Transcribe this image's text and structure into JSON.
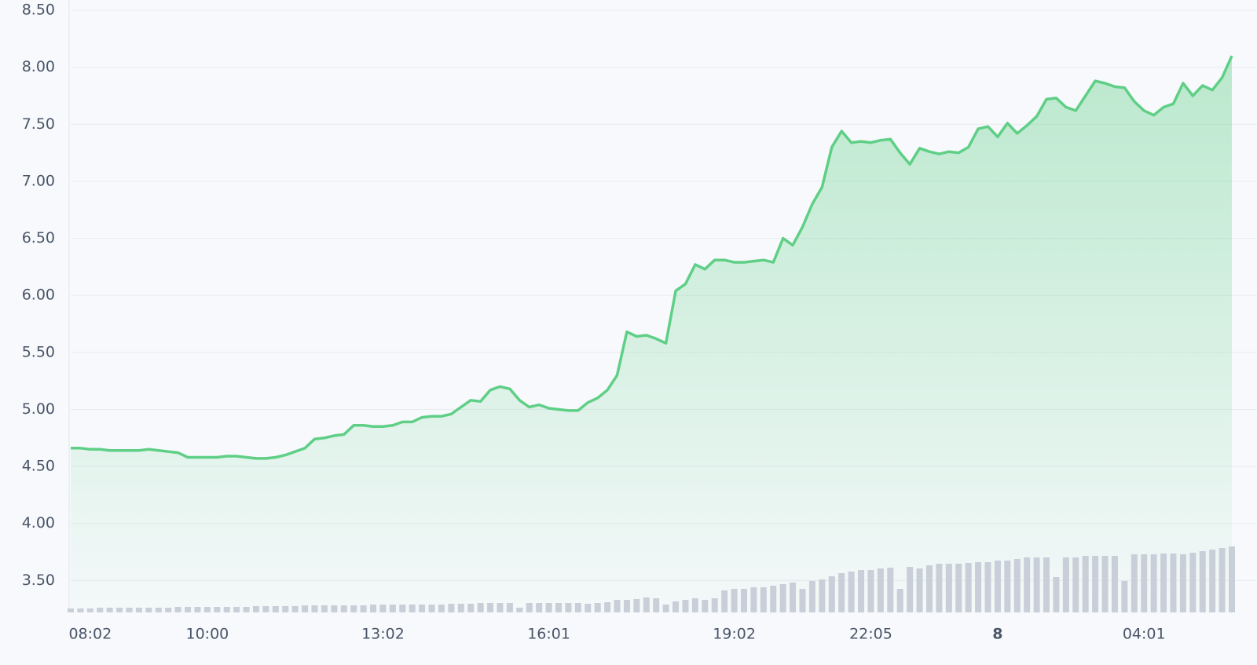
{
  "chart_data": {
    "type": "area",
    "categories": [
      null,
      null,
      "08:02",
      null,
      null,
      null,
      null,
      null,
      null,
      null,
      null,
      null,
      null,
      null,
      "10:00",
      null,
      null,
      null,
      null,
      null,
      null,
      null,
      null,
      null,
      null,
      null,
      null,
      null,
      null,
      null,
      null,
      null,
      "13:02",
      null,
      null,
      null,
      null,
      null,
      null,
      null,
      null,
      null,
      null,
      null,
      null,
      null,
      null,
      null,
      null,
      "16:01",
      null,
      null,
      null,
      null,
      null,
      null,
      null,
      null,
      null,
      null,
      null,
      null,
      null,
      null,
      null,
      null,
      null,
      null,
      "19:02",
      null,
      null,
      null,
      null,
      null,
      null,
      null,
      null,
      null,
      null,
      null,
      null,
      null,
      "22:05",
      null,
      null,
      null,
      null,
      null,
      null,
      null,
      null,
      null,
      null,
      null,
      null,
      "8",
      null,
      null,
      null,
      null,
      null,
      null,
      null,
      null,
      null,
      null,
      null,
      null,
      null,
      null,
      "04:01",
      null,
      null,
      null,
      null,
      null,
      null,
      null,
      null,
      null
    ],
    "series": [
      {
        "type": "area",
        "color": "#5fcf86",
        "values": [
          4.66,
          4.66,
          4.65,
          4.65,
          4.64,
          4.64,
          4.64,
          4.64,
          4.65,
          4.64,
          4.63,
          4.62,
          4.58,
          4.58,
          4.58,
          4.58,
          4.59,
          4.59,
          4.58,
          4.57,
          4.57,
          4.58,
          4.6,
          4.63,
          4.66,
          4.74,
          4.75,
          4.77,
          4.78,
          4.86,
          4.86,
          4.85,
          4.85,
          4.86,
          4.89,
          4.89,
          4.93,
          4.94,
          4.94,
          4.96,
          5.02,
          5.08,
          5.07,
          5.17,
          5.2,
          5.18,
          5.08,
          5.02,
          5.04,
          5.01,
          5.0,
          4.99,
          4.99,
          5.06,
          5.1,
          5.17,
          5.3,
          5.68,
          5.64,
          5.65,
          5.62,
          5.58,
          6.04,
          6.1,
          6.27,
          6.23,
          6.31,
          6.31,
          6.29,
          6.29,
          6.3,
          6.31,
          6.29,
          6.5,
          6.44,
          6.6,
          6.8,
          6.95,
          7.3,
          7.44,
          7.34,
          7.35,
          7.34,
          7.36,
          7.37,
          7.25,
          7.15,
          7.29,
          7.26,
          7.24,
          7.26,
          7.25,
          7.3,
          7.46,
          7.48,
          7.39,
          7.51,
          7.42,
          7.49,
          7.57,
          7.72,
          7.73,
          7.65,
          7.62,
          7.75,
          7.88,
          7.86,
          7.83,
          7.82,
          7.7,
          7.62,
          7.58,
          7.65,
          7.68,
          7.86,
          7.75,
          7.84,
          7.8,
          7.91,
          8.1
        ]
      },
      {
        "type": "bar",
        "axis": "y2",
        "color": "#c9cfd9",
        "values": [
          5,
          5,
          5,
          6,
          6,
          6,
          6,
          6,
          6,
          6,
          6,
          7,
          7,
          7,
          7,
          7,
          7,
          7,
          7,
          8,
          8,
          8,
          8,
          8,
          9,
          9,
          9,
          9,
          9,
          9,
          9,
          10,
          10,
          10,
          10,
          10,
          10,
          10,
          10,
          11,
          11,
          11,
          12,
          12,
          12,
          12,
          6,
          12,
          12,
          12,
          12,
          12,
          12,
          11,
          12,
          13,
          16,
          16,
          17,
          19,
          18,
          10,
          14,
          16,
          18,
          16,
          18,
          28,
          30,
          30,
          32,
          32,
          34,
          36,
          38,
          30,
          40,
          42,
          46,
          50,
          52,
          54,
          54,
          56,
          57,
          30,
          58,
          56,
          60,
          62,
          62,
          62,
          63,
          64,
          64,
          66,
          66,
          68,
          70,
          70,
          70,
          45,
          70,
          70,
          72,
          72,
          72,
          72,
          40,
          74,
          74,
          74,
          75,
          75,
          74,
          76,
          78,
          80,
          82,
          84
        ]
      }
    ],
    "ylim": [
      3.22,
      8.59
    ],
    "yticks": [
      {
        "value": 3.5,
        "label": "3.50"
      },
      {
        "value": 4,
        "label": "4.00"
      },
      {
        "value": 4.5,
        "label": "4.50"
      },
      {
        "value": 5,
        "label": "5.00"
      },
      {
        "value": 5.5,
        "label": "5.50"
      },
      {
        "value": 6,
        "label": "6.00"
      },
      {
        "value": 6.5,
        "label": "6.50"
      },
      {
        "value": 7,
        "label": "7.00"
      },
      {
        "value": 7.5,
        "label": "7.50"
      },
      {
        "value": 8,
        "label": "8.00"
      },
      {
        "value": 8.5,
        "label": "8.50"
      }
    ],
    "y2lim": [
      0,
      780
    ],
    "grid": true
  }
}
